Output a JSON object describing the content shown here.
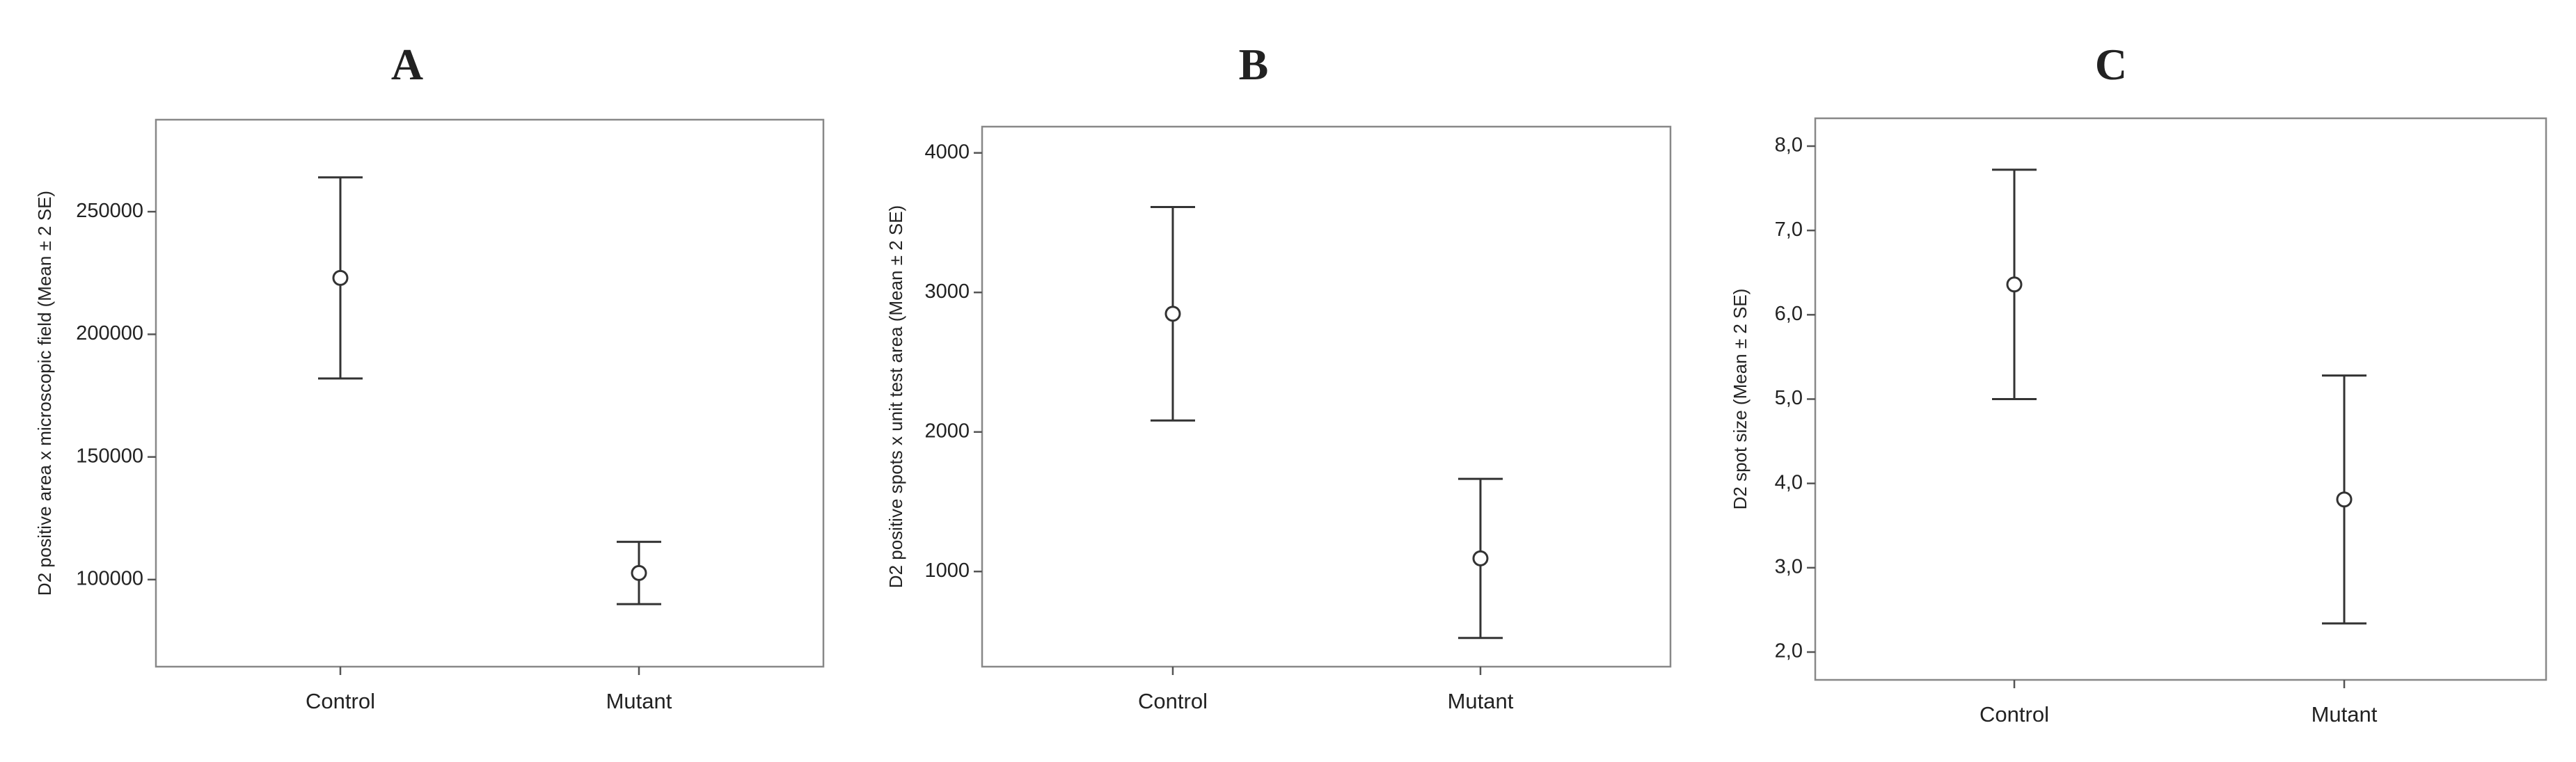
{
  "chart_data": [
    {
      "type": "errorbar",
      "title": "A",
      "ylabel": "D2 positive area x microscopic field (Mean ± 2 SE)",
      "categories": [
        "Control",
        "Mutant"
      ],
      "values": [
        223000,
        102700
      ],
      "errors": [
        41000,
        12700
      ],
      "ylim": [
        64500,
        287500
      ],
      "yticks": [
        100000,
        150000,
        200000,
        250000
      ]
    },
    {
      "type": "errorbar",
      "title": "B",
      "ylabel": "D2 positive spots x unit test area (Mean ± 2 SE)",
      "categories": [
        "Control",
        "Mutant"
      ],
      "values": [
        2847,
        1094
      ],
      "errors": [
        765,
        570
      ],
      "ylim": [
        318,
        4188
      ],
      "yticks": [
        1000,
        2000,
        3000,
        4000
      ]
    },
    {
      "type": "errorbar",
      "title": "C",
      "ylabel": "D2 spot size (Mean ± 2 SE)",
      "categories": [
        "Control",
        "Mutant"
      ],
      "values": [
        6.36,
        3.81
      ],
      "errors": [
        1.36,
        1.47
      ],
      "ylim": [
        1.67,
        8.33
      ],
      "yticks": [
        {
          "value": 2,
          "label": "2,0"
        },
        {
          "value": 3,
          "label": "3,0"
        },
        {
          "value": 4,
          "label": "4,0"
        },
        {
          "value": 5,
          "label": "5,0"
        },
        {
          "value": 6,
          "label": "6,0"
        },
        {
          "value": 7,
          "label": "7,0"
        },
        {
          "value": 8,
          "label": "8,0"
        }
      ]
    }
  ]
}
